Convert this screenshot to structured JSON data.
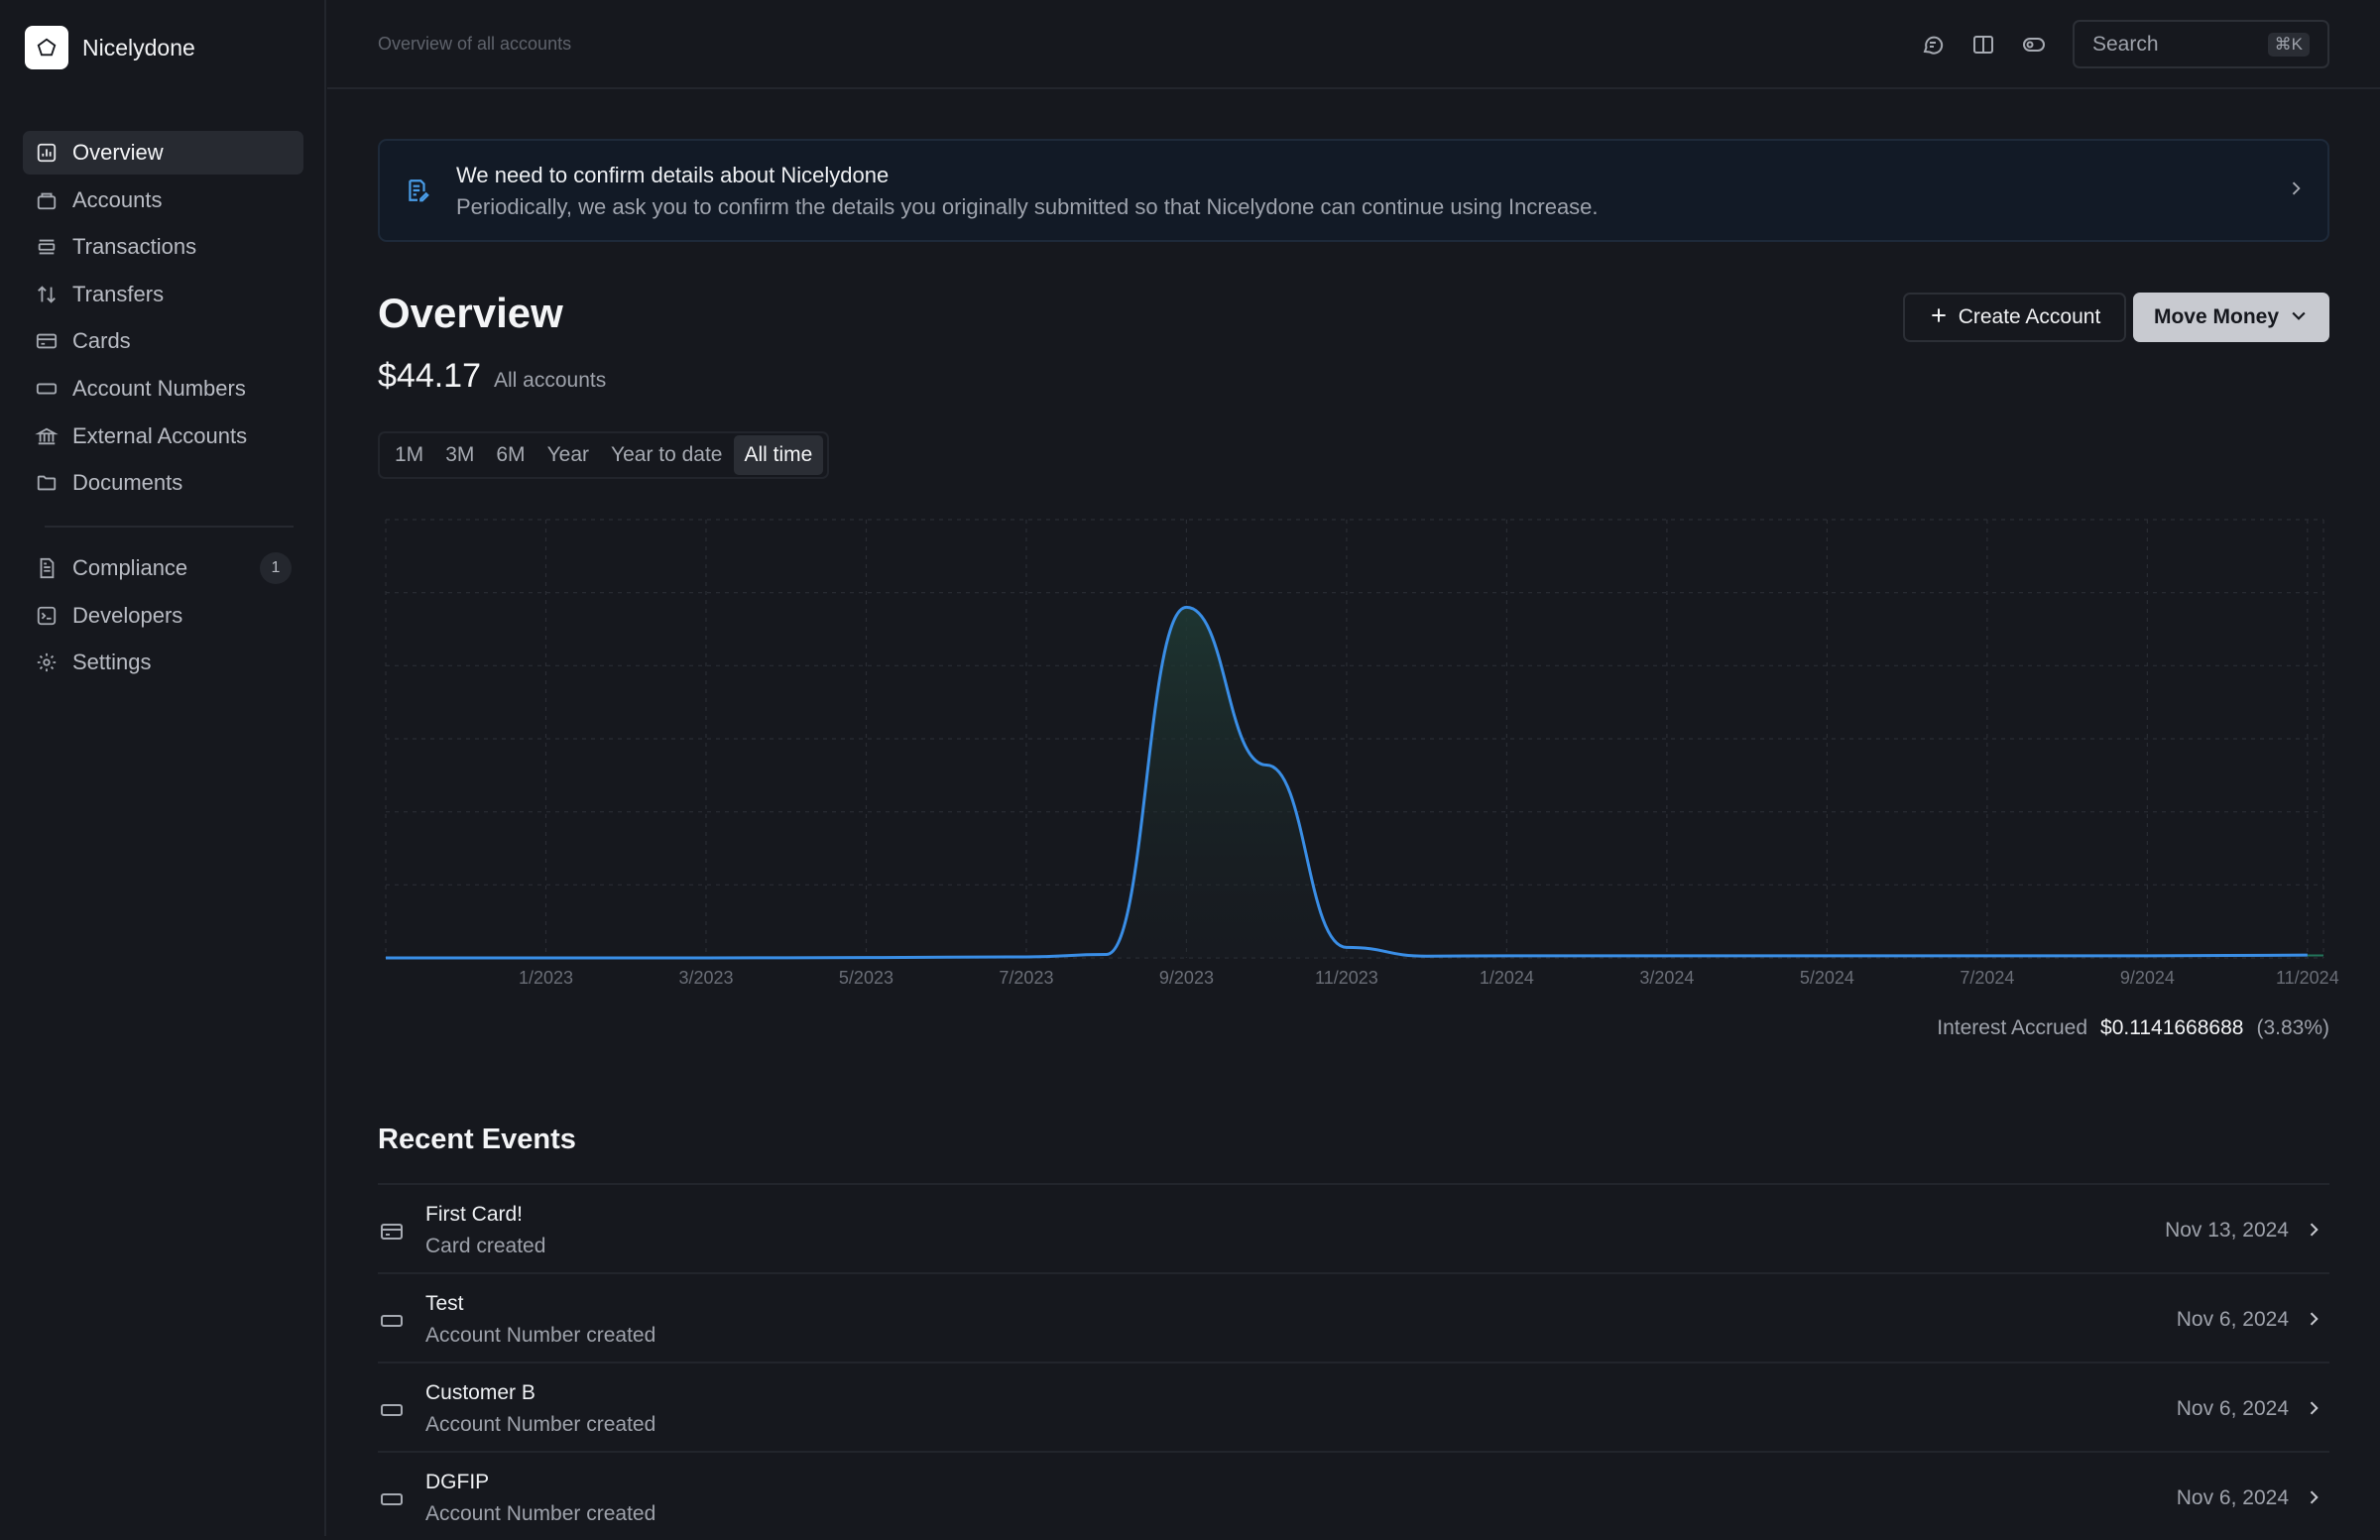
{
  "brand": {
    "name": "Nicelydone",
    "logo_icon": "pentagon-icon"
  },
  "sidebar": {
    "items": [
      {
        "label": "Overview",
        "icon": "chart-icon",
        "active": true
      },
      {
        "label": "Accounts",
        "icon": "briefcase-icon"
      },
      {
        "label": "Transactions",
        "icon": "list-icon"
      },
      {
        "label": "Transfers",
        "icon": "arrows-updown-icon"
      },
      {
        "label": "Cards",
        "icon": "card-icon"
      },
      {
        "label": "Account Numbers",
        "icon": "number-icon"
      },
      {
        "label": "External Accounts",
        "icon": "bank-icon"
      },
      {
        "label": "Documents",
        "icon": "folder-icon"
      }
    ],
    "secondary": [
      {
        "label": "Compliance",
        "icon": "document-icon",
        "badge": "1"
      },
      {
        "label": "Developers",
        "icon": "terminal-icon"
      },
      {
        "label": "Settings",
        "icon": "gear-icon"
      }
    ]
  },
  "header": {
    "breadcrumb": "Overview of all accounts",
    "search_placeholder": "Search",
    "search_shortcut": "⌘K",
    "icons": [
      "chat-icon",
      "book-icon",
      "toggle-icon"
    ]
  },
  "banner": {
    "title": "We need to confirm details about Nicelydone",
    "text": "Periodically, we ask you to confirm the details you originally submitted so that Nicelydone can continue using Increase."
  },
  "overview": {
    "title": "Overview",
    "balance": "$44.17",
    "balance_label": "All accounts",
    "create_account": "Create Account",
    "move_money": "Move Money"
  },
  "range_tabs": [
    "1M",
    "3M",
    "6M",
    "Year",
    "Year to date",
    "All time"
  ],
  "active_range": "All time",
  "chart_data": {
    "type": "area",
    "x": [
      "11/2022",
      "1/2023",
      "3/2023",
      "5/2023",
      "7/2023",
      "8/2023",
      "9/2023",
      "10/2023",
      "11/2023",
      "12/2023",
      "1/2024",
      "3/2024",
      "5/2024",
      "7/2024",
      "9/2024",
      "11/2024"
    ],
    "series": [
      {
        "values": [
          0,
          0,
          0,
          0.1,
          0.3,
          1,
          100,
          55,
          3,
          0.5,
          0.6,
          0.6,
          0.6,
          0.6,
          0.6,
          0.8
        ]
      }
    ],
    "tick_labels": [
      "1/2023",
      "3/2023",
      "5/2023",
      "7/2023",
      "9/2023",
      "11/2023",
      "1/2024",
      "3/2024",
      "5/2024",
      "7/2024",
      "9/2024",
      "11/2024"
    ],
    "ylim": [
      0,
      125
    ],
    "grid": true,
    "line_color": "#3a8ee6"
  },
  "interest": {
    "label": "Interest Accrued",
    "value": "$0.1141668688",
    "percent": "(3.83%)"
  },
  "events": {
    "title": "Recent Events",
    "items": [
      {
        "title": "First Card!",
        "subtitle": "Card created",
        "date": "Nov 13, 2024",
        "icon": "card-icon"
      },
      {
        "title": "Test",
        "subtitle": "Account Number created",
        "date": "Nov 6, 2024",
        "icon": "number-icon"
      },
      {
        "title": "Customer B",
        "subtitle": "Account Number created",
        "date": "Nov 6, 2024",
        "icon": "number-icon"
      },
      {
        "title": "DGFIP",
        "subtitle": "Account Number created",
        "date": "Nov 6, 2024",
        "icon": "number-icon"
      }
    ]
  }
}
